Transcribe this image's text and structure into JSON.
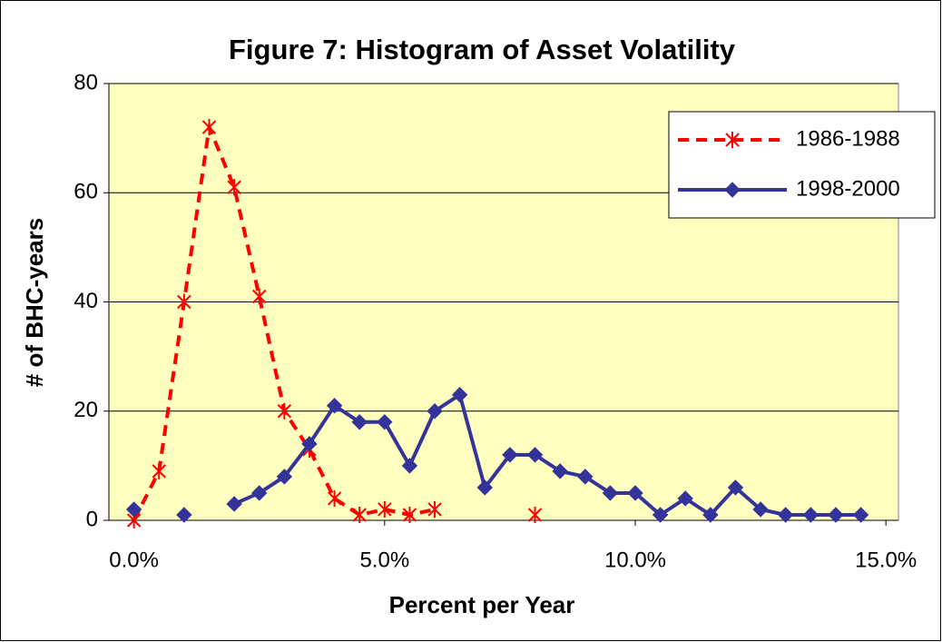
{
  "chart_data": {
    "type": "line",
    "title": "Figure 7: Histogram of Asset Volatility",
    "x_label": "Percent per Year",
    "y_label": "# of BHC-years",
    "x": [
      0,
      0.5,
      1,
      1.5,
      2,
      2.5,
      3,
      3.5,
      4,
      4.5,
      5,
      5.5,
      6,
      6.5,
      7,
      7.5,
      8,
      8.5,
      9,
      9.5,
      10,
      10.5,
      11,
      11.5,
      12,
      12.5,
      13,
      13.5,
      14,
      14.5
    ],
    "series": [
      {
        "name": "1986-1988",
        "color": "#ff0000",
        "marker": "star",
        "dashed": true,
        "values": [
          0,
          9,
          40,
          72,
          61,
          41,
          20,
          13,
          4,
          1,
          2,
          1,
          2,
          null,
          null,
          null,
          1,
          null,
          null,
          null,
          null,
          null,
          null,
          null,
          null,
          null,
          null,
          null,
          null,
          null
        ]
      },
      {
        "name": "1998-2000",
        "color": "#333399",
        "marker": "diamond",
        "dashed": false,
        "values": [
          2,
          null,
          1,
          null,
          3,
          5,
          8,
          14,
          21,
          18,
          18,
          10,
          20,
          23,
          6,
          12,
          12,
          9,
          8,
          5,
          5,
          1,
          4,
          1,
          6,
          2,
          1,
          1,
          1,
          1
        ]
      }
    ],
    "xlim": [
      -0.5,
      15.25
    ],
    "xticks": [
      {
        "value": 0,
        "label": "0.0%"
      },
      {
        "value": 5,
        "label": "5.0%"
      },
      {
        "value": 10,
        "label": "10.0%"
      },
      {
        "value": 15,
        "label": "15.0%"
      }
    ],
    "ylim": [
      0,
      80
    ],
    "yticks": [
      0,
      20,
      40,
      60,
      80
    ],
    "grid": true,
    "legend": "upper right",
    "background": "#ffffc0"
  }
}
